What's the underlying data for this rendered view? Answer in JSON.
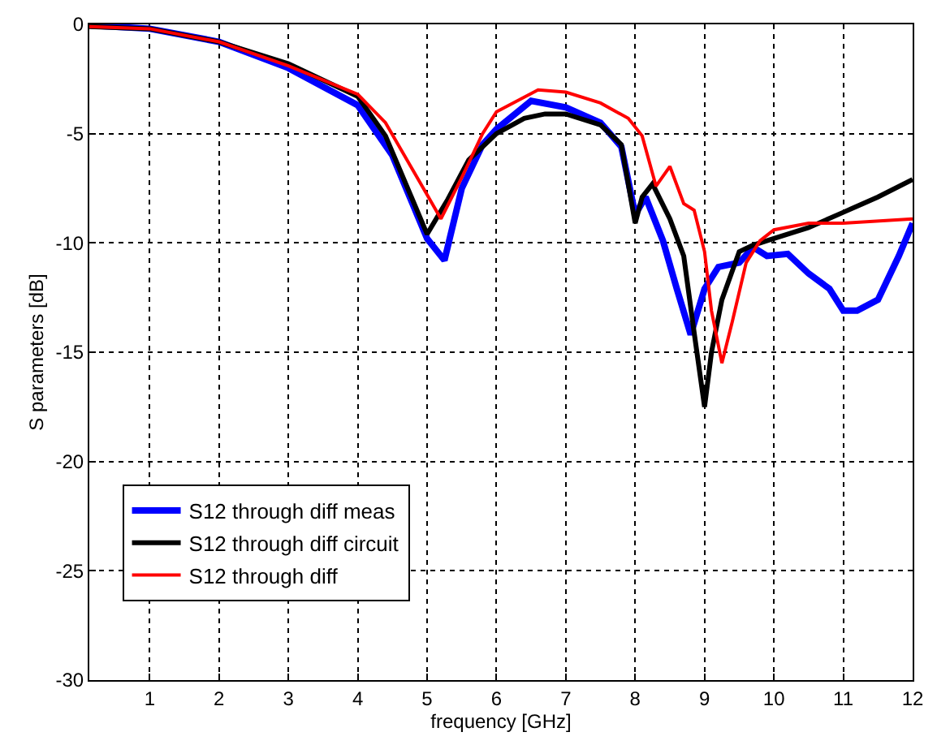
{
  "chart_data": {
    "type": "line",
    "xlabel": "frequency [GHz]",
    "ylabel": "S parameters [dB]",
    "xlim": [
      0.13,
      12
    ],
    "ylim": [
      -30,
      0
    ],
    "xticks": [
      1,
      2,
      3,
      4,
      5,
      6,
      7,
      8,
      9,
      10,
      11,
      12
    ],
    "yticks": [
      -30,
      -25,
      -20,
      -15,
      -10,
      -5,
      0
    ],
    "grid": true,
    "legend": "bottom left",
    "line_style": "solid",
    "marker": "none",
    "series": [
      {
        "name": "S12 through diff meas",
        "color": "#0000ff",
        "x": [
          0.13,
          1,
          2,
          3,
          4,
          4.5,
          5,
          5.25,
          5.5,
          5.8,
          6,
          6.5,
          7,
          7.5,
          7.8,
          8,
          8.15,
          8.4,
          8.6,
          8.8,
          9,
          9.2,
          9.5,
          9.7,
          9.9,
          10.2,
          10.5,
          10.8,
          11,
          11.2,
          11.5,
          11.8,
          12
        ],
        "values": [
          -0.05,
          -0.2,
          -0.8,
          -2.0,
          -3.7,
          -6.0,
          -9.8,
          -10.8,
          -7.5,
          -5.5,
          -4.8,
          -3.5,
          -3.8,
          -4.5,
          -5.6,
          -8.7,
          -7.9,
          -9.9,
          -12.1,
          -14.2,
          -12.1,
          -11.1,
          -10.9,
          -10.2,
          -10.6,
          -10.5,
          -11.4,
          -12.1,
          -13.1,
          -13.1,
          -12.6,
          -10.6,
          -9.1
        ]
      },
      {
        "name": "S12 through diff circuit",
        "color": "#000000",
        "x": [
          0.13,
          1,
          2,
          3,
          4,
          4.4,
          5,
          5.3,
          5.6,
          6,
          6.4,
          6.7,
          7,
          7.5,
          7.8,
          8,
          8.1,
          8.25,
          8.5,
          8.7,
          8.85,
          9,
          9.1,
          9.25,
          9.5,
          9.7,
          10,
          10.5,
          11,
          11.5,
          12
        ],
        "values": [
          -0.1,
          -0.2,
          -0.8,
          -1.8,
          -3.3,
          -5.1,
          -9.6,
          -8.0,
          -6.2,
          -5.0,
          -4.3,
          -4.1,
          -4.1,
          -4.6,
          -5.5,
          -9.1,
          -7.9,
          -7.3,
          -8.9,
          -10.6,
          -14.1,
          -17.5,
          -15.0,
          -12.6,
          -10.4,
          -10.1,
          -9.8,
          -9.3,
          -8.6,
          -7.9,
          -7.1
        ]
      },
      {
        "name": "S12 through diff",
        "color": "#ff0000",
        "x": [
          0.13,
          1,
          2,
          3,
          4,
          4.4,
          5,
          5.2,
          5.5,
          5.8,
          6,
          6.6,
          7,
          7.5,
          7.9,
          8.1,
          8.3,
          8.5,
          8.7,
          8.85,
          9,
          9.1,
          9.25,
          9.4,
          9.6,
          9.8,
          10,
          10.5,
          11,
          12
        ],
        "values": [
          -0.1,
          -0.2,
          -0.8,
          -1.9,
          -3.2,
          -4.5,
          -7.8,
          -8.9,
          -7.0,
          -5.0,
          -4.0,
          -3.0,
          -3.1,
          -3.6,
          -4.3,
          -5.1,
          -7.4,
          -6.5,
          -8.2,
          -8.5,
          -10.4,
          -13.1,
          -15.5,
          -13.6,
          -10.9,
          -9.9,
          -9.4,
          -9.1,
          -9.1,
          -8.9
        ]
      }
    ]
  }
}
